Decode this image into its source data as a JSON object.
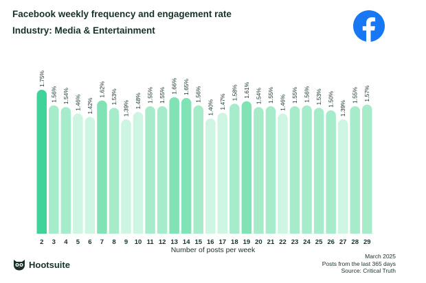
{
  "header": {
    "title": "Facebook weekly frequency and engagement rate",
    "subtitle": "Industry: Media & Entertainment"
  },
  "brand": {
    "logo_icon": "facebook-logo-icon",
    "footer_brand": "Hootsuite",
    "footer_icon": "hootsuite-owl-icon"
  },
  "footnote": {
    "date": "March 2025",
    "period": "Posts from the last 365 days",
    "source": "Source: Critical Truth"
  },
  "colors": {
    "max": "#3fd39a",
    "high": "#81e2b5",
    "mid": "#a6ecca",
    "low": "#cdf5e2",
    "facebook_blue": "#1877f2"
  },
  "chart_data": {
    "type": "bar",
    "title": "Facebook weekly frequency and engagement rate",
    "subtitle": "Industry: Media & Entertainment",
    "xlabel": "Number of posts per week",
    "ylabel": "",
    "categories": [
      "2",
      "3",
      "4",
      "5",
      "6",
      "7",
      "8",
      "9",
      "10",
      "11",
      "12",
      "13",
      "14",
      "15",
      "16",
      "17",
      "18",
      "19",
      "20",
      "21",
      "22",
      "23",
      "24",
      "25",
      "26",
      "27",
      "28",
      "29"
    ],
    "values": [
      1.75,
      1.56,
      1.54,
      1.46,
      1.42,
      1.62,
      1.53,
      1.39,
      1.48,
      1.55,
      1.55,
      1.66,
      1.65,
      1.56,
      1.4,
      1.47,
      1.58,
      1.61,
      1.54,
      1.55,
      1.46,
      1.55,
      1.56,
      1.53,
      1.5,
      1.39,
      1.55,
      1.57
    ],
    "value_labels": [
      "1.75%",
      "1.56%",
      "1.54%",
      "1.46%",
      "1.42%",
      "1.62%",
      "1.53%",
      "1.39%",
      "1.48%",
      "1.55%",
      "1.55%",
      "1.66%",
      "1.65%",
      "1.56%",
      "1.40%",
      "1.47%",
      "1.58%",
      "1.61%",
      "1.54%",
      "1.55%",
      "1.46%",
      "1.55%",
      "1.56%",
      "1.53%",
      "1.50%",
      "1.39%",
      "1.55%",
      "1.57%"
    ],
    "ylim": [
      0,
      1.75
    ],
    "grid": false,
    "legend": "none"
  }
}
